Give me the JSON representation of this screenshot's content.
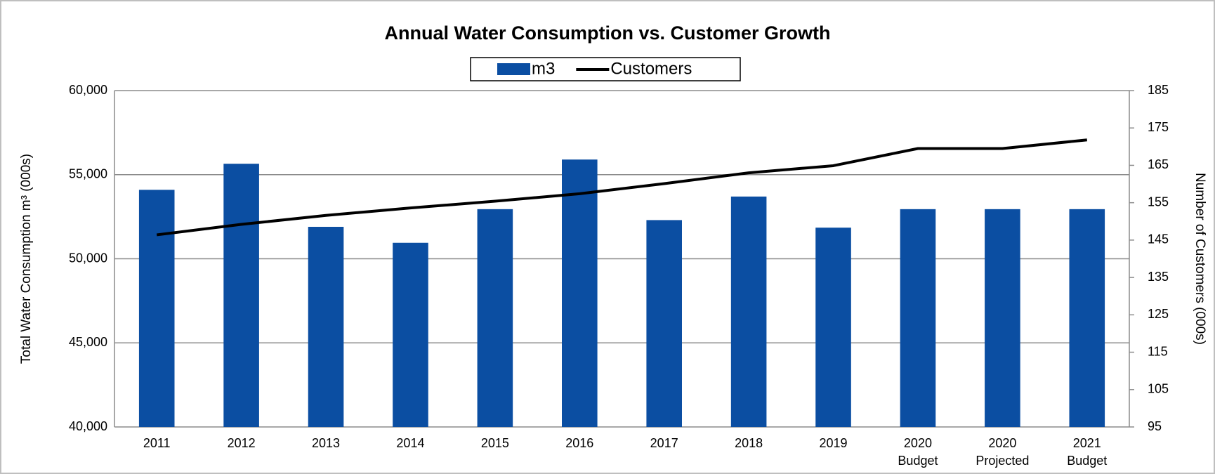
{
  "chart_data": {
    "type": "bar_line",
    "title": "Annual Water Consumption vs. Customer Growth",
    "y_label": "Total Water Consumption m³ (000s)",
    "y2_label": "Number of Customers (000s)",
    "categories": [
      [
        "2011"
      ],
      [
        "2012"
      ],
      [
        "2013"
      ],
      [
        "2014"
      ],
      [
        "2015"
      ],
      [
        "2016"
      ],
      [
        "2017"
      ],
      [
        "2018"
      ],
      [
        "2019"
      ],
      [
        "2020",
        "Budget"
      ],
      [
        "2020",
        "Projected"
      ],
      [
        "2021",
        "Budget"
      ]
    ],
    "series": [
      {
        "name": "m3",
        "type": "bar",
        "color": "#0b4ea2",
        "values": [
          54100,
          55650,
          51900,
          50950,
          52950,
          55900,
          52300,
          53700,
          51850,
          52950,
          52950,
          52950
        ]
      },
      {
        "name": "Customers",
        "type": "line",
        "axis": "y2",
        "color": "#000000",
        "values": [
          146.4,
          149.2,
          151.6,
          153.6,
          155.4,
          157.4,
          160.1,
          163,
          164.9,
          169.5,
          169.5,
          171.8
        ]
      }
    ],
    "ylim": [
      40000,
      60000
    ],
    "yticks": [
      {
        "value": 40000,
        "label": "40,000"
      },
      {
        "value": 45000,
        "label": "45,000"
      },
      {
        "value": 50000,
        "label": "50,000"
      },
      {
        "value": 55000,
        "label": "55,000"
      },
      {
        "value": 60000,
        "label": "60,000"
      }
    ],
    "y2lim": [
      95,
      185
    ],
    "y2ticks": [
      95,
      105,
      115,
      125,
      135,
      145,
      155,
      165,
      175,
      185
    ],
    "grid": true,
    "legend": "top"
  }
}
